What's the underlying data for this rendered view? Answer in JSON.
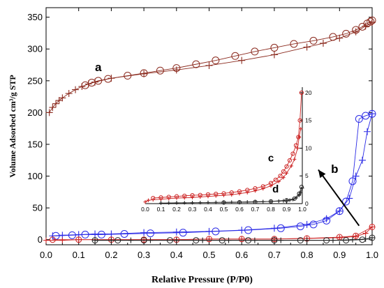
{
  "chart_data": [
    {
      "type": "line",
      "xlabel": "Relative Pressure (P/P0)",
      "ylabel": "Volume Adsorbed cm³/g STP",
      "xlim": [
        0.0,
        1.0
      ],
      "ylim": [
        -8,
        365
      ],
      "x_ticks": [
        "0.0",
        "0.1",
        "0.2",
        "0.3",
        "0.4",
        "0.5",
        "0.6",
        "0.7",
        "0.8",
        "0.9",
        "1.0"
      ],
      "y_ticks": [
        "0",
        "50",
        "100",
        "150",
        "200",
        "250",
        "300",
        "350"
      ],
      "series": [
        {
          "name": "a",
          "color": "#8b2a1e",
          "adsorption": {
            "x": [
              0.01,
              0.02,
              0.03,
              0.04,
              0.05,
              0.07,
              0.09,
              0.11,
              0.13,
              0.15,
              0.2,
              0.3,
              0.4,
              0.5,
              0.6,
              0.7,
              0.8,
              0.85,
              0.9,
              0.95,
              0.98,
              1.0
            ],
            "y": [
              200,
              208,
              214,
              219,
              223,
              230,
              236,
              241,
              245,
              248,
              254,
              261,
              267,
              274,
              282,
              291,
              303,
              309,
              317,
              327,
              336,
              342
            ]
          },
          "desorption": {
            "x": [
              0.12,
              0.14,
              0.16,
              0.19,
              0.25,
              0.3,
              0.35,
              0.4,
              0.46,
              0.52,
              0.58,
              0.64,
              0.7,
              0.76,
              0.82,
              0.88,
              0.92,
              0.95,
              0.97,
              0.985,
              0.995,
              1.0
            ],
            "y": [
              243,
              247,
              250,
              253,
              258,
              262,
              266,
              270,
              276,
              282,
              289,
              296,
              302,
              308,
              313,
              319,
              324,
              330,
              335,
              340,
              343,
              345
            ]
          }
        },
        {
          "name": "b",
          "color": "#2a2ae6",
          "adsorption": {
            "x": [
              0.02,
              0.05,
              0.1,
              0.15,
              0.2,
              0.3,
              0.4,
              0.5,
              0.6,
              0.7,
              0.8,
              0.86,
              0.9,
              0.93,
              0.95,
              0.97,
              0.985,
              1.0
            ],
            "y": [
              6,
              7,
              8,
              9,
              9,
              11,
              12,
              13,
              15,
              18,
              24,
              33,
              45,
              65,
              100,
              125,
              170,
              198
            ]
          },
          "desorption": {
            "x": [
              0.03,
              0.08,
              0.12,
              0.17,
              0.24,
              0.32,
              0.42,
              0.52,
              0.62,
              0.72,
              0.78,
              0.82,
              0.86,
              0.9,
              0.92,
              0.94,
              0.96,
              0.98,
              1.0
            ],
            "y": [
              6,
              7,
              8,
              8,
              9,
              10,
              11,
              13,
              15,
              18,
              21,
              24,
              30,
              45,
              60,
              92,
              190,
              195,
              198
            ]
          }
        },
        {
          "name": "c",
          "color": "#cc2222",
          "adsorption": {
            "x": [
              0.0,
              0.05,
              0.1,
              0.2,
              0.3,
              0.4,
              0.5,
              0.6,
              0.7,
              0.8,
              0.9,
              0.95,
              0.98,
              1.0
            ],
            "y": [
              -1,
              -1,
              0,
              0,
              0,
              0,
              1,
              1,
              1,
              2,
              3,
              5,
              10,
              20
            ]
          },
          "desorption": {
            "x": [
              0.02,
              0.1,
              0.2,
              0.3,
              0.4,
              0.5,
              0.6,
              0.7,
              0.8,
              0.9,
              0.95,
              1.0
            ],
            "y": [
              0,
              0,
              0,
              0,
              0,
              1,
              1,
              1,
              2,
              4,
              6,
              20
            ]
          }
        },
        {
          "name": "d",
          "color": "#222222",
          "adsorption": {
            "x": [
              0.15,
              0.2,
              0.26,
              0.32,
              0.4,
              0.48,
              0.56,
              0.64,
              0.72,
              0.8,
              0.88,
              0.94,
              0.98,
              1.0
            ],
            "y": [
              -1,
              -1,
              -1,
              -1,
              -1,
              -1,
              -1,
              -1,
              -1,
              -1,
              -1,
              0,
              1,
              3
            ]
          },
          "desorption": {
            "x": [
              0.15,
              0.22,
              0.3,
              0.38,
              0.46,
              0.54,
              0.62,
              0.7,
              0.78,
              0.86,
              0.92,
              0.97,
              1.0
            ],
            "y": [
              -1,
              -1,
              -1,
              -1,
              -1,
              -1,
              -1,
              -1,
              -1,
              -1,
              -1,
              0,
              3
            ]
          }
        }
      ],
      "annotations": [
        {
          "text": "a",
          "x": 0.16,
          "y": 265
        },
        {
          "text": "b",
          "x": 0.885,
          "y": 105
        },
        {
          "text": "arrow",
          "from": [
            0.96,
            22
          ],
          "to": [
            0.835,
            110
          ]
        }
      ]
    },
    {
      "type": "line",
      "role": "inset",
      "xlim": [
        0.0,
        1.0
      ],
      "ylim": [
        0,
        21
      ],
      "x_ticks": [
        "0.0",
        "0.1",
        "0.2",
        "0.3",
        "0.4",
        "0.5",
        "0.6",
        "0.7",
        "0.8",
        "0.9",
        "1.0"
      ],
      "y_ticks": [
        "0",
        "5",
        "10",
        "15",
        "20"
      ],
      "series": [
        {
          "name": "c",
          "color": "#cc2222",
          "adsorption": {
            "x": [
              0.0,
              0.02,
              0.05,
              0.1,
              0.15,
              0.2,
              0.25,
              0.3,
              0.35,
              0.4,
              0.45,
              0.5,
              0.55,
              0.6,
              0.65,
              0.7,
              0.75,
              0.8,
              0.85,
              0.88,
              0.9,
              0.93,
              0.95,
              0.97,
              0.98,
              0.99
            ],
            "y": [
              0.3,
              0.6,
              0.7,
              0.8,
              0.9,
              1.0,
              1.05,
              1.1,
              1.2,
              1.3,
              1.4,
              1.5,
              1.6,
              1.8,
              2.0,
              2.3,
              2.7,
              3.2,
              4.0,
              4.7,
              5.5,
              6.8,
              8.0,
              10.0,
              12.0,
              13.5
            ]
          },
          "desorption": {
            "x": [
              0.05,
              0.1,
              0.15,
              0.2,
              0.25,
              0.3,
              0.35,
              0.4,
              0.45,
              0.5,
              0.55,
              0.6,
              0.65,
              0.7,
              0.75,
              0.8,
              0.83,
              0.86,
              0.88,
              0.9,
              0.92,
              0.94,
              0.96,
              0.975,
              0.985,
              0.995
            ],
            "y": [
              1.0,
              1.1,
              1.2,
              1.3,
              1.4,
              1.5,
              1.55,
              1.65,
              1.75,
              1.85,
              2.0,
              2.2,
              2.45,
              2.75,
              3.1,
              3.7,
              4.3,
              5.0,
              5.8,
              6.7,
              7.8,
              9.0,
              10.5,
              12.0,
              15.0,
              20.0
            ]
          }
        },
        {
          "name": "d",
          "color": "#222222",
          "adsorption": {
            "x": [
              0.1,
              0.15,
              0.2,
              0.25,
              0.3,
              0.35,
              0.4,
              0.45,
              0.5,
              0.55,
              0.6,
              0.65,
              0.7,
              0.75,
              0.8,
              0.85,
              0.88,
              0.9,
              0.92,
              0.94,
              0.96,
              0.98,
              0.99,
              1.0
            ],
            "y": [
              0.1,
              0.12,
              0.14,
              0.15,
              0.16,
              0.18,
              0.2,
              0.22,
              0.24,
              0.26,
              0.28,
              0.3,
              0.33,
              0.36,
              0.4,
              0.45,
              0.5,
              0.55,
              0.62,
              0.75,
              1.0,
              1.5,
              2.0,
              2.8
            ]
          },
          "desorption": {
            "x": [
              0.5,
              0.6,
              0.7,
              0.8,
              0.9,
              0.95,
              0.98,
              0.995
            ],
            "y": [
              0.2,
              0.25,
              0.3,
              0.4,
              0.6,
              0.9,
              1.8,
              3.0
            ]
          }
        }
      ],
      "annotations": [
        {
          "text": "c",
          "x": 0.8,
          "y": 7.6
        },
        {
          "text": "d",
          "x": 0.83,
          "y": 2.0
        }
      ]
    }
  ]
}
